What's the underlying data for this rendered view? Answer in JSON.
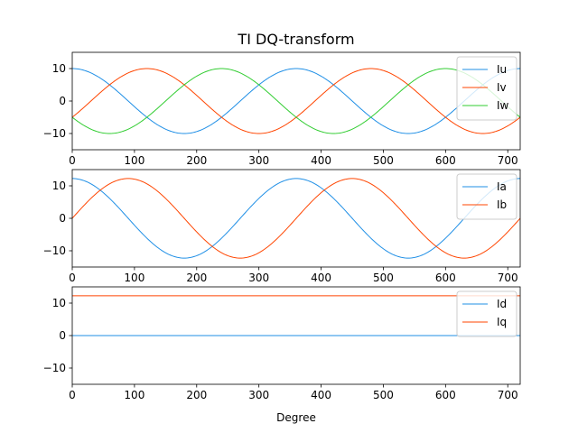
{
  "chart_data": {
    "type": "line",
    "title": "TI DQ-transform",
    "xlabel": "Degree",
    "xlim": [
      0,
      720
    ],
    "xticks": [
      0,
      100,
      200,
      300,
      400,
      500,
      600,
      700
    ],
    "grid": false,
    "subplots": [
      {
        "ylim": [
          -15,
          15
        ],
        "yticks": [
          -10,
          0,
          10
        ],
        "legend_position": "upper-right",
        "series": [
          {
            "name": "Iu",
            "color": "#1f8fe6",
            "amplitude": 10,
            "phase_deg": 0,
            "function": "cos"
          },
          {
            "name": "Iv",
            "color": "#ff4500",
            "amplitude": 10,
            "phase_deg": -120,
            "function": "cos"
          },
          {
            "name": "Iw",
            "color": "#32cd32",
            "amplitude": 10,
            "phase_deg": 120,
            "function": "cos"
          }
        ]
      },
      {
        "ylim": [
          -15,
          15
        ],
        "yticks": [
          -10,
          0,
          10
        ],
        "legend_position": "upper-right",
        "series": [
          {
            "name": "Ia",
            "color": "#1f8fe6",
            "amplitude": 12.25,
            "phase_deg": 0,
            "function": "cos"
          },
          {
            "name": "Ib",
            "color": "#ff4500",
            "amplitude": 12.25,
            "phase_deg": 0,
            "function": "sin"
          }
        ]
      },
      {
        "ylim": [
          -15,
          15
        ],
        "yticks": [
          -10,
          0,
          10
        ],
        "legend_position": "upper-right",
        "series": [
          {
            "name": "Id",
            "color": "#1f8fe6",
            "constant": 0
          },
          {
            "name": "Iq",
            "color": "#ff4500",
            "constant": 12.25
          }
        ]
      }
    ]
  }
}
